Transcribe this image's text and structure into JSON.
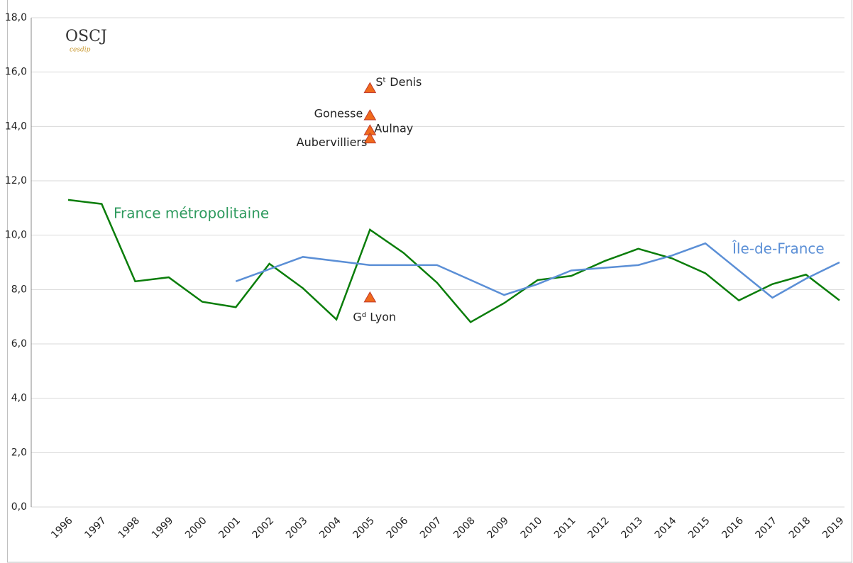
{
  "chart_data": {
    "type": "line",
    "logo": {
      "title": "OSCJ",
      "subtitle": "cesdip"
    },
    "categories": [
      "1996",
      "1997",
      "1998",
      "1999",
      "2000",
      "2001",
      "2002",
      "2003",
      "2004",
      "2005",
      "2006",
      "2007",
      "2008",
      "2009",
      "2010",
      "2011",
      "2012",
      "2013",
      "2014",
      "2015",
      "2016",
      "2017",
      "2018",
      "2019"
    ],
    "series": [
      {
        "name": "France métropolitaine",
        "color": "#0a7d0a",
        "label_color": "#2e9a5e",
        "values": [
          11.3,
          11.15,
          8.3,
          8.45,
          7.55,
          7.35,
          8.95,
          8.05,
          6.9,
          10.2,
          9.35,
          8.25,
          6.8,
          7.5,
          8.35,
          8.5,
          9.05,
          9.5,
          9.15,
          8.6,
          7.6,
          8.2,
          8.55,
          7.6
        ]
      },
      {
        "name": "Île-de-France",
        "color": "#5b8fd6",
        "label_color": "#5b8fd6",
        "values": [
          null,
          null,
          null,
          null,
          null,
          8.3,
          8.75,
          9.2,
          9.05,
          8.9,
          8.9,
          8.9,
          8.35,
          7.8,
          8.2,
          8.7,
          8.8,
          8.9,
          9.25,
          9.7,
          8.7,
          7.7,
          8.4,
          9.0
        ]
      }
    ],
    "points": {
      "color": "#f06a1c",
      "edge": "#c0392b",
      "items": [
        {
          "label": "Sᵗ Denis",
          "x": "2005",
          "y": 15.4
        },
        {
          "label": "Gonesse",
          "x": "2005",
          "y": 14.4
        },
        {
          "label": "Aulnay",
          "x": "2005",
          "y": 13.85
        },
        {
          "label": "Aubervilliers",
          "x": "2005",
          "y": 13.55
        },
        {
          "label": "Gᵈ Lyon",
          "x": "2005",
          "y": 7.7
        }
      ]
    },
    "ylim": [
      0,
      18
    ],
    "yticks": [
      {
        "value": 0,
        "label": "0,0"
      },
      {
        "value": 2,
        "label": "2,0"
      },
      {
        "value": 4,
        "label": "4,0"
      },
      {
        "value": 6,
        "label": "6,0"
      },
      {
        "value": 8,
        "label": "8,0"
      },
      {
        "value": 10,
        "label": "10,0"
      },
      {
        "value": 12,
        "label": "12,0"
      },
      {
        "value": 14,
        "label": "14,0"
      },
      {
        "value": 16,
        "label": "16,0"
      },
      {
        "value": 18,
        "label": "18,0"
      }
    ],
    "grid": true
  }
}
